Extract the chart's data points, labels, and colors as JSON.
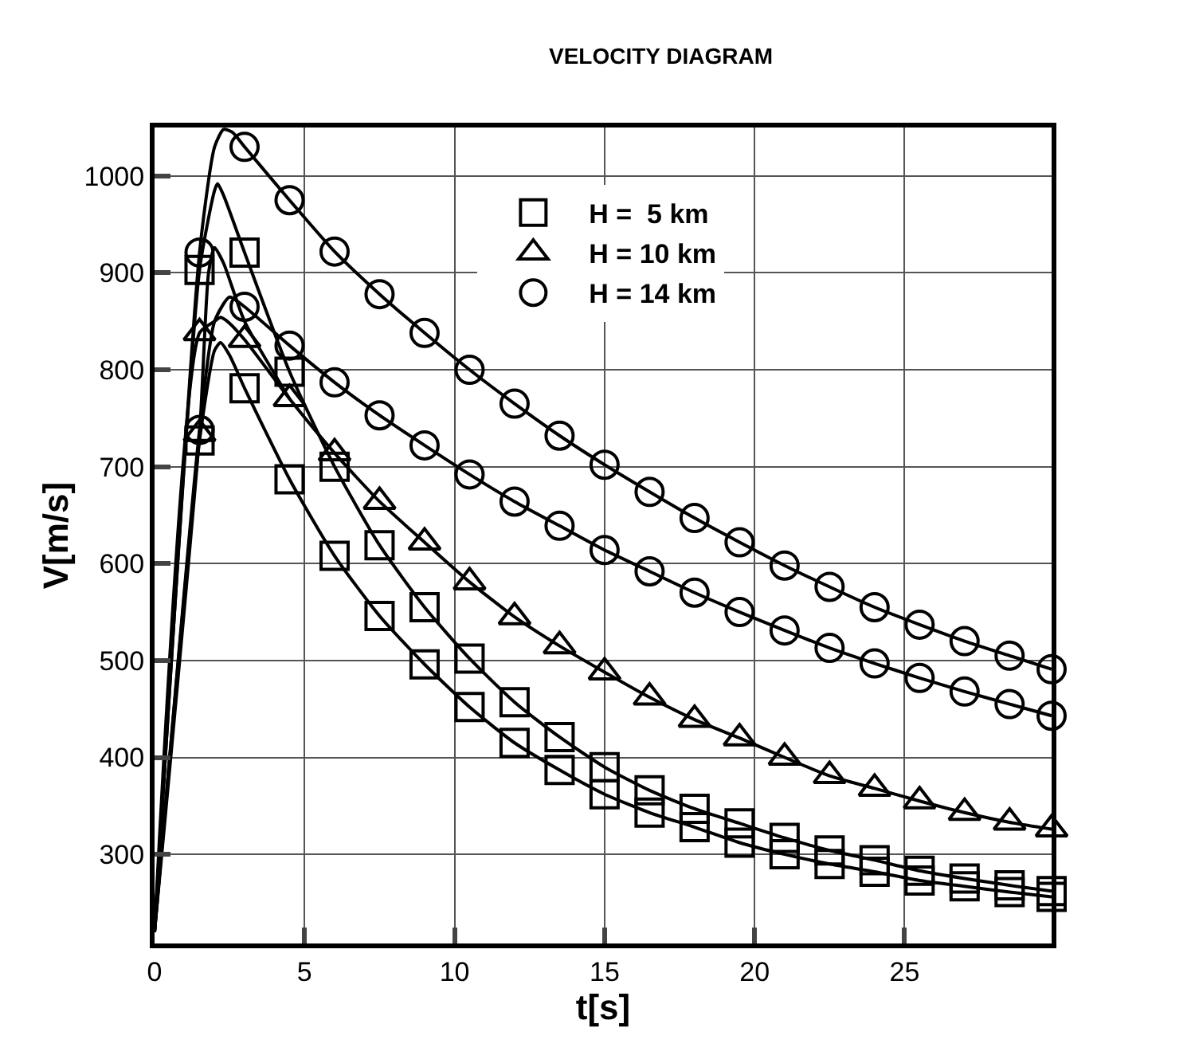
{
  "chart_data": {
    "type": "line",
    "title": "VELOCITY DIAGRAM",
    "xlabel": "t[s]",
    "ylabel": "V[m/s]",
    "xlim": [
      0,
      29.9
    ],
    "xticks": [
      0,
      5,
      10,
      15,
      20,
      25
    ],
    "ylim": [
      208,
      1050
    ],
    "yticks": [
      300,
      400,
      500,
      600,
      700,
      800,
      900,
      1000
    ],
    "grid": true,
    "legend": "top",
    "series": [
      {
        "marker": "none",
        "color": "#000000",
        "x": [
          0,
          1.5,
          2.0,
          2.1,
          2.3,
          3,
          4.5,
          6,
          7.5,
          9,
          10.5,
          12,
          13.5,
          15,
          16.5,
          18,
          19.5,
          21,
          22.5,
          24,
          25.5,
          27,
          28.5,
          29.9
        ],
        "values": [
          220,
          903,
          985,
          992,
          980,
          921,
          798,
          700,
          619,
          555,
          502,
          457,
          421,
          390,
          366,
          347,
          332,
          317,
          304,
          294,
          283,
          275,
          268,
          262
        ]
      },
      {
        "marker": "none",
        "color": "#000000",
        "x": [
          0,
          1.5,
          2.0,
          2.2,
          2.5,
          3,
          4.5,
          6,
          7.5,
          9,
          10.5,
          12,
          13.5,
          15,
          16.5,
          18,
          19.5,
          21,
          22.5,
          24,
          25.5,
          27,
          28.5,
          29.9
        ],
        "values": [
          220,
          727,
          820,
          828,
          815,
          781,
          687,
          608,
          546,
          496,
          452,
          415,
          387,
          362,
          343,
          328,
          312,
          300,
          290,
          282,
          273,
          267,
          261,
          256
        ]
      },
      {
        "marker": "none",
        "color": "#000000",
        "x": [
          0,
          1.5,
          2.0,
          2.2,
          2.5,
          3,
          4.5,
          6,
          7.5,
          9,
          10.5,
          12,
          13.5,
          15,
          16.5,
          18,
          19.5,
          21,
          22.5,
          24,
          25.5,
          27,
          28.5,
          29.9
        ],
        "values": [
          220,
          838,
          850,
          854,
          848,
          831,
          770,
          714,
          664,
          622,
          581,
          545,
          515,
          488,
          462,
          439,
          420,
          400,
          381,
          368,
          355,
          343,
          333,
          326
        ]
      },
      {
        "marker": "none",
        "color": "#000000",
        "x": [
          0,
          1.5,
          1.8,
          2.0,
          2.3,
          3,
          4.5
        ],
        "values": [
          220,
          734,
          900,
          926,
          910,
          850,
          770
        ]
      },
      {
        "marker": "none",
        "color": "#000000",
        "x": [
          0,
          1.5,
          2.0,
          2.3,
          2.6,
          3,
          4.5,
          6,
          7.5,
          9,
          10.5,
          12,
          13.5,
          15,
          16.5,
          18,
          19.5,
          21,
          22.5,
          24,
          25.5,
          27,
          28.5,
          29.9
        ],
        "values": [
          220,
          921,
          1030,
          1048,
          1045,
          1030,
          975,
          922,
          878,
          838,
          800,
          765,
          732,
          702,
          674,
          647,
          622,
          598,
          576,
          555,
          537,
          520,
          505,
          491
        ]
      },
      {
        "marker": "none",
        "color": "#000000",
        "x": [
          0,
          1.5,
          2.0,
          2.5,
          3,
          4.5,
          6,
          7.5,
          9,
          10.5,
          12,
          13.5,
          15,
          16.5,
          18,
          19.5,
          21,
          22.5,
          24,
          25.5,
          27,
          28.5,
          29.9
        ],
        "values": [
          220,
          738,
          850,
          875,
          865,
          825,
          787,
          753,
          722,
          692,
          664,
          639,
          614,
          592,
          570,
          550,
          531,
          513,
          497,
          482,
          468,
          455,
          443
        ]
      },
      {
        "type": "scatter",
        "name": "H =  5 km",
        "marker": "square",
        "color": "#000000",
        "x": [
          1.5,
          3,
          4.5,
          6,
          7.5,
          9,
          10.5,
          12,
          13.5,
          15,
          16.5,
          18,
          19.5,
          21,
          22.5,
          24,
          25.5,
          27,
          28.5,
          29.9
        ],
        "values": [
          903,
          921,
          798,
          700,
          619,
          555,
          502,
          457,
          421,
          390,
          366,
          347,
          332,
          317,
          304,
          294,
          283,
          275,
          268,
          262
        ]
      },
      {
        "type": "scatter",
        "marker": "square",
        "color": "#000000",
        "x": [
          1.5,
          3,
          4.5,
          6,
          7.5,
          9,
          10.5,
          12,
          13.5,
          15,
          16.5,
          18,
          19.5,
          21,
          22.5,
          24,
          25.5,
          27,
          28.5,
          29.9
        ],
        "values": [
          727,
          781,
          687,
          608,
          546,
          496,
          452,
          415,
          387,
          362,
          343,
          328,
          312,
          300,
          290,
          282,
          273,
          267,
          261,
          256
        ]
      },
      {
        "type": "scatter",
        "name": "H = 10 km",
        "marker": "triangle",
        "color": "#000000",
        "x": [
          1.5,
          3,
          4.5,
          6,
          7.5,
          9,
          10.5,
          12,
          13.5,
          15,
          16.5,
          18,
          19.5,
          21,
          22.5,
          24,
          25.5,
          27,
          28.5,
          29.9
        ],
        "values": [
          838,
          831,
          770,
          714,
          664,
          622,
          581,
          545,
          515,
          488,
          462,
          439,
          420,
          400,
          381,
          368,
          355,
          343,
          333,
          326
        ]
      },
      {
        "type": "scatter",
        "marker": "triangle",
        "color": "#000000",
        "x": [
          1.5
        ],
        "values": [
          734
        ]
      },
      {
        "type": "scatter",
        "name": "H = 14 km",
        "marker": "circle",
        "color": "#000000",
        "x": [
          1.5,
          3,
          4.5,
          6,
          7.5,
          9,
          10.5,
          12,
          13.5,
          15,
          16.5,
          18,
          19.5,
          21,
          22.5,
          24,
          25.5,
          27,
          28.5,
          29.9
        ],
        "values": [
          921,
          1030,
          975,
          922,
          878,
          838,
          800,
          765,
          732,
          702,
          674,
          647,
          622,
          598,
          576,
          555,
          537,
          520,
          505,
          491
        ]
      },
      {
        "type": "scatter",
        "marker": "circle",
        "color": "#000000",
        "x": [
          1.5,
          3,
          4.5,
          6,
          7.5,
          9,
          10.5,
          12,
          13.5,
          15,
          16.5,
          18,
          19.5,
          21,
          22.5,
          24,
          25.5,
          27,
          28.5,
          29.9
        ],
        "values": [
          738,
          865,
          825,
          787,
          753,
          722,
          692,
          664,
          639,
          614,
          592,
          570,
          550,
          531,
          513,
          497,
          482,
          468,
          455,
          443
        ]
      }
    ]
  }
}
